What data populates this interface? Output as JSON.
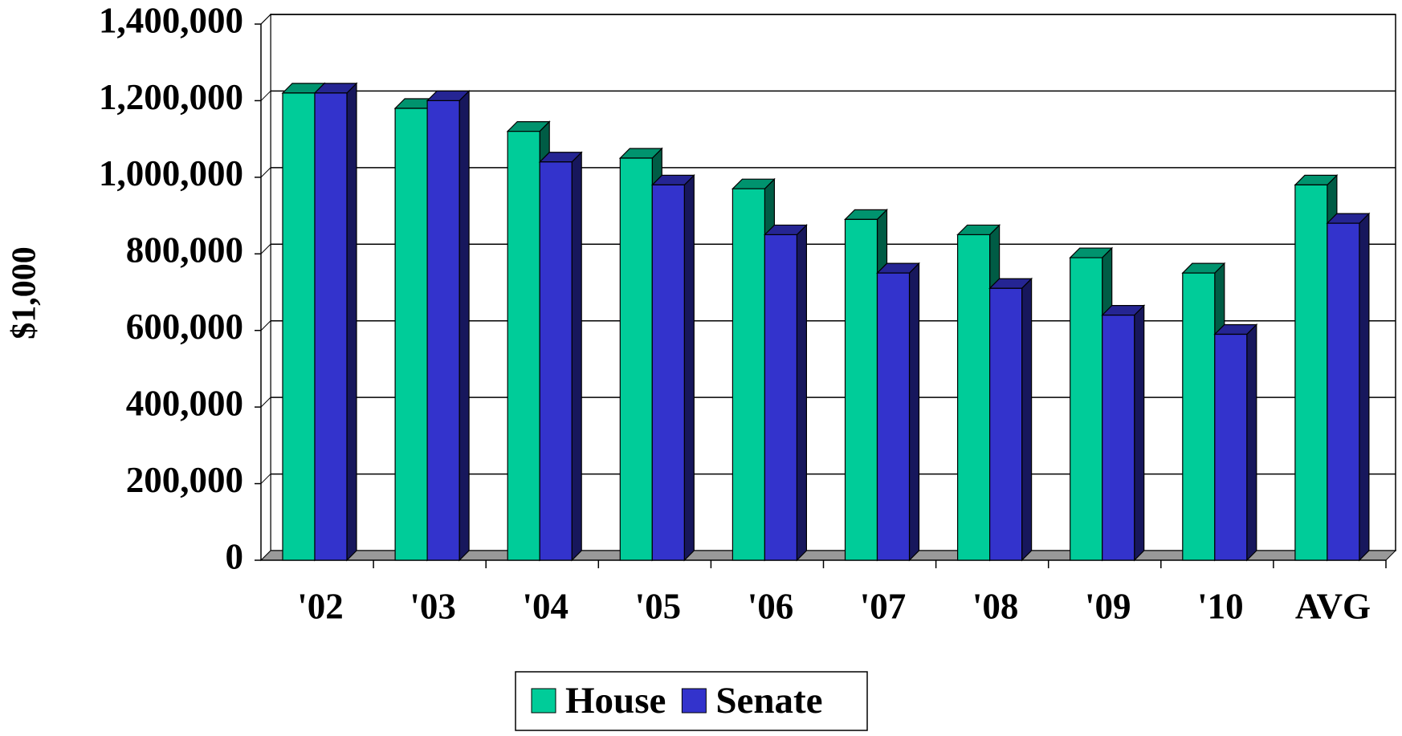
{
  "chart_data": {
    "type": "bar3d",
    "ylabel": "$1,000",
    "categories": [
      "'02",
      "'03",
      "'04",
      "'05",
      "'06",
      "'07",
      "'08",
      "'09",
      "'10",
      "AVG"
    ],
    "series": [
      {
        "name": "House",
        "color": "#00cc99",
        "values": [
          1220000,
          1180000,
          1120000,
          1050000,
          970000,
          890000,
          850000,
          790000,
          750000,
          980000
        ]
      },
      {
        "name": "Senate",
        "color": "#3333cc",
        "values": [
          1220000,
          1200000,
          1040000,
          980000,
          850000,
          750000,
          710000,
          640000,
          590000,
          880000
        ]
      }
    ],
    "ylim": [
      0,
      1400000
    ],
    "yticks": [
      {
        "value": 0,
        "label": "0"
      },
      {
        "value": 200000,
        "label": "200,000"
      },
      {
        "value": 400000,
        "label": "400,000"
      },
      {
        "value": 600000,
        "label": "600,000"
      },
      {
        "value": 800000,
        "label": "800,000"
      },
      {
        "value": 1000000,
        "label": "1,000,000"
      },
      {
        "value": 1200000,
        "label": "1,200,000"
      },
      {
        "value": 1400000,
        "label": "1,400,000"
      }
    ],
    "grid": true
  }
}
